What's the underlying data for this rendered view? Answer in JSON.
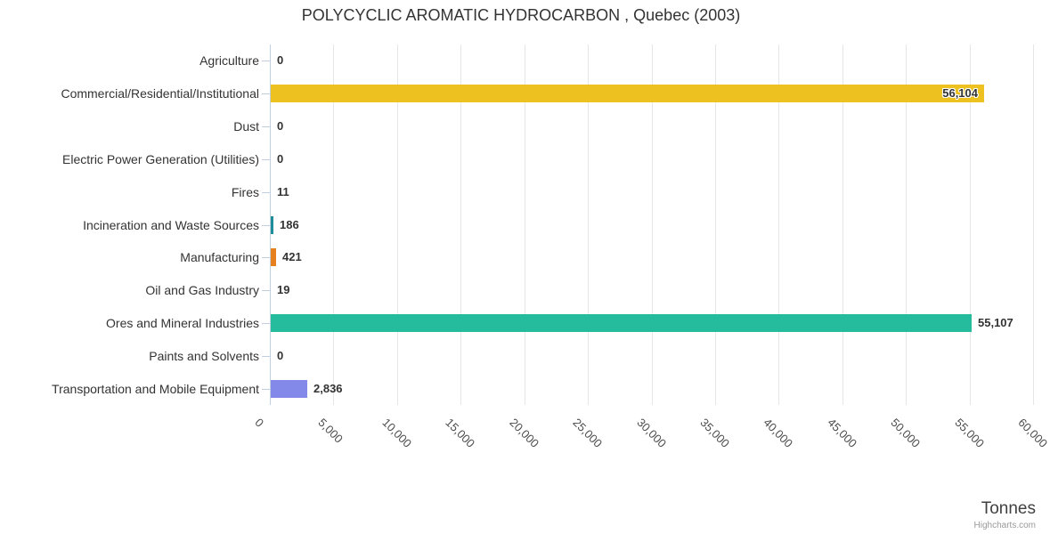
{
  "chart_data": {
    "type": "bar",
    "orientation": "horizontal",
    "title": "POLYCYCLIC AROMATIC HYDROCARBON , Quebec (2003)",
    "categories": [
      "Agriculture",
      "Commercial/Residential/Institutional",
      "Dust",
      "Electric Power Generation (Utilities)",
      "Fires",
      "Incineration and Waste Sources",
      "Manufacturing",
      "Oil and Gas Industry",
      "Ores and Mineral Industries",
      "Paints and Solvents",
      "Transportation and Mobile Equipment"
    ],
    "values": [
      0,
      56104,
      0,
      0,
      11,
      186,
      421,
      19,
      55107,
      0,
      2836
    ],
    "value_labels": [
      "0",
      "56,104",
      "0",
      "0",
      "11",
      "186",
      "421",
      "19",
      "55,107",
      "0",
      "2,836"
    ],
    "bar_colors": [
      null,
      "#edc120",
      null,
      null,
      null,
      "#1e8c99",
      "#e6801f",
      null,
      "#24bc9c",
      null,
      "#8289e8"
    ],
    "ylabel": "Tonnes",
    "xlabel": "",
    "x_range": [
      0,
      60000
    ],
    "x_tick_step": 5000,
    "x_ticks": [
      "0",
      "5,000",
      "10,000",
      "15,000",
      "20,000",
      "25,000",
      "30,000",
      "35,000",
      "40,000",
      "45,000",
      "50,000",
      "55,000",
      "60,000"
    ],
    "grid": true,
    "legend": false
  },
  "colors": {
    "background": "#ffffff",
    "title": "#333333",
    "category_label": "#333333",
    "data_label": "#333333",
    "axis_line": "#c0d0e0",
    "gridline": "#e6e6e6",
    "x_tick_label": "#4d4d4d",
    "axis_title": "#404040",
    "credits": "#999999"
  },
  "credits": {
    "label": "Highcharts.com"
  }
}
